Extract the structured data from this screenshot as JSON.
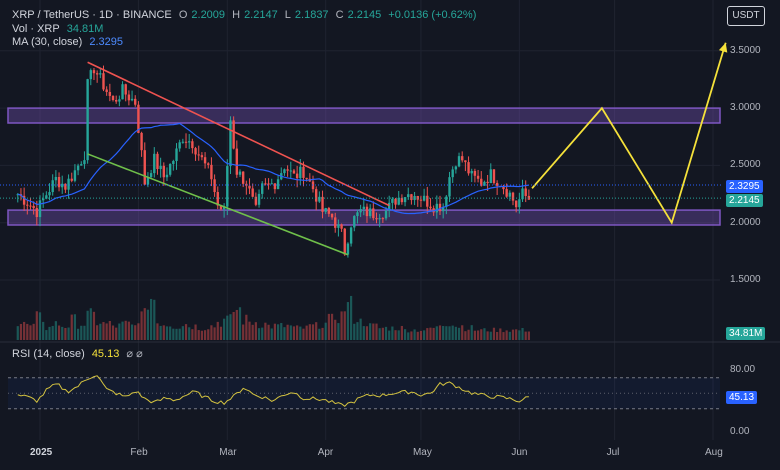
{
  "header": {
    "symbol": "XRP / TetherUS · 1D · BINANCE",
    "o_label": "O",
    "o_value": "2.2009",
    "h_label": "H",
    "h_value": "2.2147",
    "l_label": "L",
    "l_value": "2.1837",
    "c_label": "C",
    "c_value": "2.2145",
    "change": "+0.0136 (+0.62%)"
  },
  "vol_legend": {
    "label": "Vol · XRP",
    "value": "34.81M"
  },
  "ma_legend": {
    "label": "MA (30, close)",
    "value": "2.3295"
  },
  "rsi_legend": {
    "label": "RSI (14, close)",
    "value": "45.13",
    "icons": "⌀ ⌀"
  },
  "currency_button": "USDT",
  "price_tags": {
    "ma": "2.3295",
    "close": "2.2145",
    "volume": "34.81M",
    "rsi": "45.13"
  },
  "colors": {
    "up": "#26a69a",
    "down": "#ef5350",
    "ma": "#2962ff",
    "zone": "#7e57c2",
    "projection": "#f5e13a",
    "rsi": "#d4c340",
    "resistance": "#ef5350",
    "support": "#6fbf4a"
  },
  "chart_data": [
    {
      "type": "candlestick",
      "title": "",
      "x_axis_ticks": [
        "2025",
        "Feb",
        "Mar",
        "Apr",
        "May",
        "Jun",
        "Jul",
        "Aug"
      ],
      "y_axis_ticks": [
        1.5,
        2.0,
        2.5,
        3.0,
        3.5
      ],
      "ylim": [
        1.0,
        3.85
      ],
      "grid": true,
      "last_close": 2.2145,
      "ma30_last": 2.3295,
      "price_series": [
        {
          "date": "2024-12-25",
          "close": 2.25
        },
        {
          "date": "2024-12-28",
          "close": 2.18
        },
        {
          "date": "2024-12-31",
          "close": 2.1
        },
        {
          "date": "2025-01-03",
          "close": 2.25
        },
        {
          "date": "2025-01-06",
          "close": 2.38
        },
        {
          "date": "2025-01-09",
          "close": 2.32
        },
        {
          "date": "2025-01-12",
          "close": 2.45
        },
        {
          "date": "2025-01-15",
          "close": 2.6
        },
        {
          "date": "2025-01-16",
          "close": 3.2
        },
        {
          "date": "2025-01-18",
          "close": 3.35
        },
        {
          "date": "2025-01-21",
          "close": 3.2
        },
        {
          "date": "2025-01-24",
          "close": 3.05
        },
        {
          "date": "2025-01-27",
          "close": 3.15
        },
        {
          "date": "2025-01-31",
          "close": 3.05
        },
        {
          "date": "2025-02-02",
          "close": 2.6
        },
        {
          "date": "2025-02-03",
          "close": 2.35
        },
        {
          "date": "2025-02-06",
          "close": 2.55
        },
        {
          "date": "2025-02-09",
          "close": 2.4
        },
        {
          "date": "2025-02-12",
          "close": 2.55
        },
        {
          "date": "2025-02-15",
          "close": 2.75
        },
        {
          "date": "2025-02-18",
          "close": 2.7
        },
        {
          "date": "2025-02-21",
          "close": 2.55
        },
        {
          "date": "2025-02-24",
          "close": 2.4
        },
        {
          "date": "2025-02-26",
          "close": 2.15
        },
        {
          "date": "2025-02-28",
          "close": 2.1
        },
        {
          "date": "2025-03-02",
          "close": 2.9
        },
        {
          "date": "2025-03-04",
          "close": 2.45
        },
        {
          "date": "2025-03-07",
          "close": 2.35
        },
        {
          "date": "2025-03-10",
          "close": 2.1
        },
        {
          "date": "2025-03-12",
          "close": 2.3
        },
        {
          "date": "2025-03-16",
          "close": 2.35
        },
        {
          "date": "2025-03-19",
          "close": 2.5
        },
        {
          "date": "2025-03-22",
          "close": 2.4
        },
        {
          "date": "2025-03-25",
          "close": 2.45
        },
        {
          "date": "2025-03-28",
          "close": 2.3
        },
        {
          "date": "2025-03-31",
          "close": 2.1
        },
        {
          "date": "2025-04-03",
          "close": 2.05
        },
        {
          "date": "2025-04-06",
          "close": 1.9
        },
        {
          "date": "2025-04-07",
          "close": 1.75
        },
        {
          "date": "2025-04-09",
          "close": 2.0
        },
        {
          "date": "2025-04-12",
          "close": 2.1
        },
        {
          "date": "2025-04-16",
          "close": 2.08
        },
        {
          "date": "2025-04-20",
          "close": 2.1
        },
        {
          "date": "2025-04-23",
          "close": 2.2
        },
        {
          "date": "2025-04-26",
          "close": 2.25
        },
        {
          "date": "2025-04-29",
          "close": 2.25
        },
        {
          "date": "2025-05-02",
          "close": 2.2
        },
        {
          "date": "2025-05-05",
          "close": 2.15
        },
        {
          "date": "2025-05-08",
          "close": 2.15
        },
        {
          "date": "2025-05-10",
          "close": 2.4
        },
        {
          "date": "2025-05-12",
          "close": 2.55
        },
        {
          "date": "2025-05-14",
          "close": 2.55
        },
        {
          "date": "2025-05-17",
          "close": 2.4
        },
        {
          "date": "2025-05-20",
          "close": 2.35
        },
        {
          "date": "2025-05-23",
          "close": 2.42
        },
        {
          "date": "2025-05-26",
          "close": 2.35
        },
        {
          "date": "2025-05-29",
          "close": 2.25
        },
        {
          "date": "2025-05-31",
          "close": 2.15
        },
        {
          "date": "2025-06-02",
          "close": 2.25
        },
        {
          "date": "2025-06-04",
          "close": 2.21
        }
      ],
      "horizontal_zones": [
        {
          "low": 2.87,
          "high": 3.0
        },
        {
          "low": 1.98,
          "high": 2.11
        }
      ],
      "trendlines": [
        {
          "role": "resistance",
          "from": {
            "date": "2025-01-16",
            "price": 3.4
          },
          "to": {
            "date": "2025-04-21",
            "price": 2.15
          }
        },
        {
          "role": "support",
          "from": {
            "date": "2025-01-16",
            "price": 2.6
          },
          "to": {
            "date": "2025-04-08",
            "price": 1.72
          }
        }
      ],
      "projection_path": [
        {
          "date": "2025-06-05",
          "price": 2.3
        },
        {
          "date": "2025-06-27",
          "price": 3.0
        },
        {
          "date": "2025-07-19",
          "price": 2.0
        },
        {
          "date": "2025-08-05",
          "price": 3.57
        }
      ]
    },
    {
      "type": "bar",
      "title": "",
      "last_value_label": "34.81M",
      "relative_volume": [
        0.7,
        0.5,
        0.9,
        0.4,
        0.6,
        0.5,
        0.8,
        0.6,
        1.0,
        0.7,
        0.6,
        0.5,
        0.6,
        0.5,
        1.0,
        1.9,
        0.7,
        0.6,
        0.5,
        0.6,
        0.5,
        0.4,
        0.5,
        0.7,
        0.8,
        1.3,
        0.8,
        0.7,
        0.6,
        0.5,
        0.5,
        0.5,
        0.4,
        0.4,
        0.5,
        0.6,
        0.8,
        1.0,
        1.5,
        0.9,
        0.7,
        0.5,
        0.4,
        0.4,
        0.4,
        0.3,
        0.3,
        0.3,
        0.4,
        0.6,
        0.7,
        0.5,
        0.4,
        0.3,
        0.3,
        0.3,
        0.3,
        0.3,
        0.3,
        0.3
      ]
    },
    {
      "type": "line",
      "title": "",
      "ylim": [
        0,
        100
      ],
      "y_axis_ticks": [
        0.0,
        80.0
      ],
      "bands": [
        30,
        70
      ],
      "last_value": 45.13,
      "rsi_series": [
        48,
        45,
        40,
        55,
        62,
        52,
        58,
        68,
        75,
        55,
        50,
        45,
        53,
        42,
        38,
        44,
        41,
        47,
        52,
        45,
        40,
        38,
        46,
        58,
        48,
        45,
        40,
        48,
        52,
        44,
        43,
        42,
        38,
        34,
        38,
        45,
        48,
        47,
        50,
        51,
        52,
        48,
        50,
        62,
        63,
        57,
        51,
        48,
        46,
        45,
        43,
        40,
        45
      ]
    }
  ]
}
